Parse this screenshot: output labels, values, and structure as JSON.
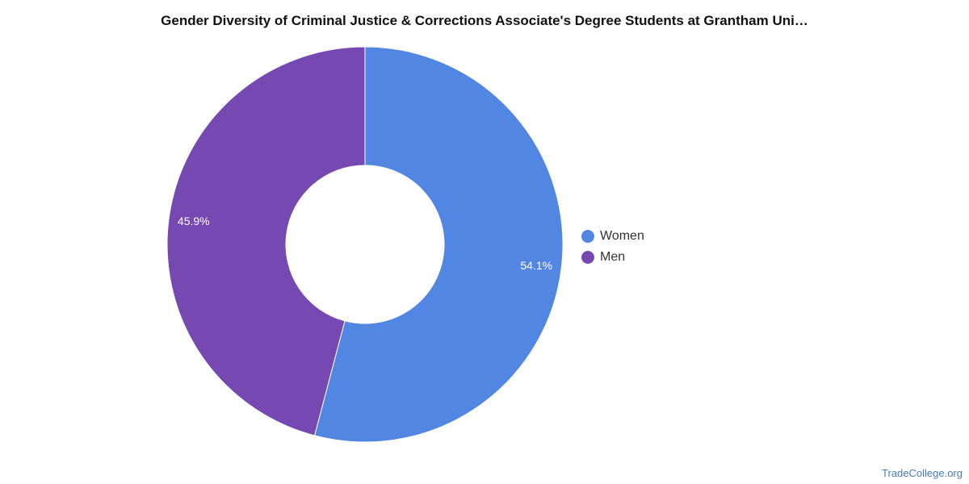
{
  "chart_data": {
    "type": "pie",
    "title": "Gender Diversity of Criminal Justice & Corrections Associate's Degree Students at Grantham Uni…",
    "style": "donut",
    "slices": [
      {
        "name": "Women",
        "value": 54.1,
        "label": "54.1%",
        "color": "#5286e3"
      },
      {
        "name": "Men",
        "value": 45.9,
        "label": "45.9%",
        "color": "#7549b1"
      }
    ],
    "legend_position": "right"
  },
  "source": "TradeCollege.org"
}
